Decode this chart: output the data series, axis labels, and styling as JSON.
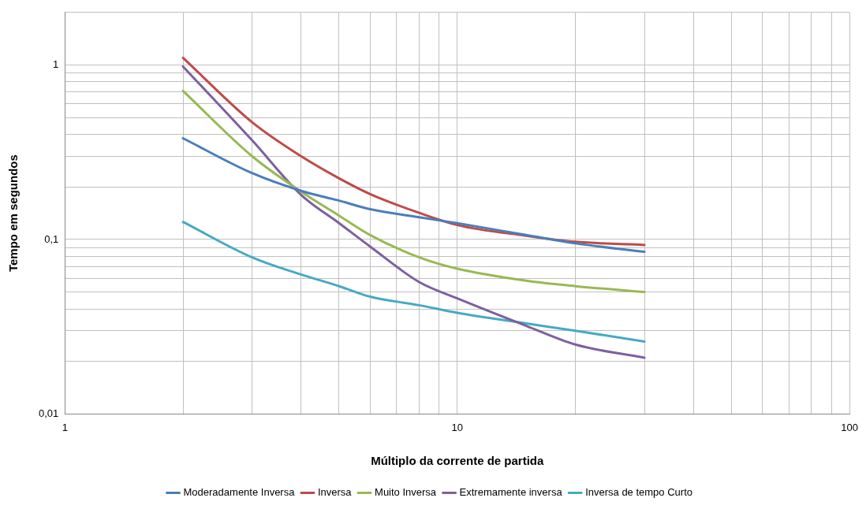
{
  "chart_data": {
    "type": "line",
    "xlabel": "Múltiplo da corrente de partida",
    "ylabel": "Tempo em segundos",
    "log": "xy",
    "grid": true,
    "legend": "bottom",
    "marker": "none",
    "line_style": "solid",
    "xlim": [
      1,
      100
    ],
    "ylim": [
      0.01,
      2
    ],
    "xticks": [
      1,
      {
        "value": 2,
        "label": null
      },
      {
        "value": 3,
        "label": null
      },
      {
        "value": 4,
        "label": null
      },
      {
        "value": 5,
        "label": null
      },
      {
        "value": 6,
        "label": null
      },
      {
        "value": 7,
        "label": null
      },
      {
        "value": 8,
        "label": null
      },
      {
        "value": 9,
        "label": null
      },
      10,
      {
        "value": 20,
        "label": null
      },
      {
        "value": 30,
        "label": null
      },
      {
        "value": 40,
        "label": null
      },
      {
        "value": 50,
        "label": null
      },
      {
        "value": 60,
        "label": null
      },
      {
        "value": 70,
        "label": null
      },
      {
        "value": 80,
        "label": null
      },
      {
        "value": 90,
        "label": null
      },
      100
    ],
    "yticks": [
      {
        "value": 0.01,
        "label": "0,01"
      },
      {
        "value": 0.02,
        "label": null
      },
      {
        "value": 0.03,
        "label": null
      },
      {
        "value": 0.04,
        "label": null
      },
      {
        "value": 0.05,
        "label": null
      },
      {
        "value": 0.06,
        "label": null
      },
      {
        "value": 0.07,
        "label": null
      },
      {
        "value": 0.08,
        "label": null
      },
      {
        "value": 0.09,
        "label": null
      },
      {
        "value": 0.1,
        "label": "0,1"
      },
      {
        "value": 0.2,
        "label": null
      },
      {
        "value": 0.3,
        "label": null
      },
      {
        "value": 0.4,
        "label": null
      },
      {
        "value": 0.5,
        "label": null
      },
      {
        "value": 0.6,
        "label": null
      },
      {
        "value": 0.7,
        "label": null
      },
      {
        "value": 0.8,
        "label": null
      },
      {
        "value": 0.9,
        "label": null
      },
      1,
      {
        "value": 2,
        "label": null
      }
    ],
    "x": [
      2,
      3,
      4,
      5,
      6,
      8,
      10,
      15,
      20,
      30
    ],
    "series": [
      {
        "name": "Moderadamente Inversa",
        "color": "#4a7ebb",
        "values": [
          0.38,
          0.24,
          0.19,
          0.167,
          0.149,
          0.134,
          0.124,
          0.106,
          0.095,
          0.085
        ]
      },
      {
        "name": "Inversa",
        "color": "#be4b48",
        "values": [
          1.1,
          0.47,
          0.3,
          0.224,
          0.182,
          0.142,
          0.121,
          0.105,
          0.097,
          0.093
        ]
      },
      {
        "name": "Muito Inversa",
        "color": "#98b954",
        "values": [
          0.71,
          0.3,
          0.188,
          0.137,
          0.106,
          0.079,
          0.068,
          0.058,
          0.054,
          0.05
        ]
      },
      {
        "name": "Extremamente inversa",
        "color": "#7d60a0",
        "values": [
          0.98,
          0.37,
          0.18,
          0.124,
          0.091,
          0.057,
          0.046,
          0.032,
          0.025,
          0.021
        ]
      },
      {
        "name": "Inversa de tempo Curto",
        "color": "#46aac5",
        "values": [
          0.126,
          0.079,
          0.063,
          0.054,
          0.047,
          0.042,
          0.038,
          0.033,
          0.03,
          0.026
        ]
      }
    ]
  }
}
